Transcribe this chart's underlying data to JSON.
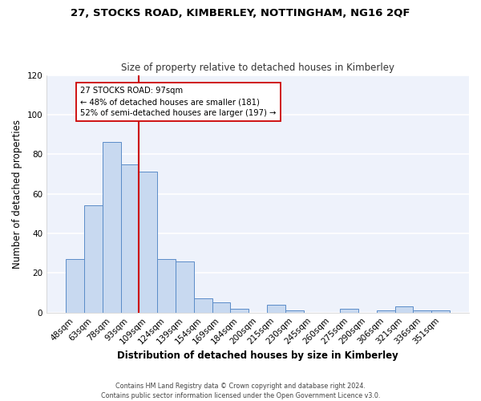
{
  "title_line1": "27, STOCKS ROAD, KIMBERLEY, NOTTINGHAM, NG16 2QF",
  "title_line2": "Size of property relative to detached houses in Kimberley",
  "xlabel": "Distribution of detached houses by size in Kimberley",
  "ylabel": "Number of detached properties",
  "bar_labels": [
    "48sqm",
    "63sqm",
    "78sqm",
    "93sqm",
    "109sqm",
    "124sqm",
    "139sqm",
    "154sqm",
    "169sqm",
    "184sqm",
    "200sqm",
    "215sqm",
    "230sqm",
    "245sqm",
    "260sqm",
    "275sqm",
    "290sqm",
    "306sqm",
    "321sqm",
    "336sqm",
    "351sqm"
  ],
  "bar_values": [
    27,
    54,
    86,
    75,
    71,
    27,
    26,
    7,
    5,
    2,
    0,
    4,
    1,
    0,
    0,
    2,
    0,
    1,
    3,
    1,
    1
  ],
  "bar_color": "#c8d9f0",
  "bar_edge_color": "#5b8cc8",
  "vline_x_index": 3.5,
  "vline_color": "#cc0000",
  "annotation_title": "27 STOCKS ROAD: 97sqm",
  "annotation_line2": "← 48% of detached houses are smaller (181)",
  "annotation_line3": "52% of semi-detached houses are larger (197) →",
  "annotation_box_color": "#ffffff",
  "annotation_box_edge": "#cc0000",
  "ylim": [
    0,
    120
  ],
  "yticks": [
    0,
    20,
    40,
    60,
    80,
    100,
    120
  ],
  "footer_line1": "Contains HM Land Registry data © Crown copyright and database right 2024.",
  "footer_line2": "Contains public sector information licensed under the Open Government Licence v3.0.",
  "background_color": "#ffffff",
  "plot_bg_color": "#eef2fb"
}
